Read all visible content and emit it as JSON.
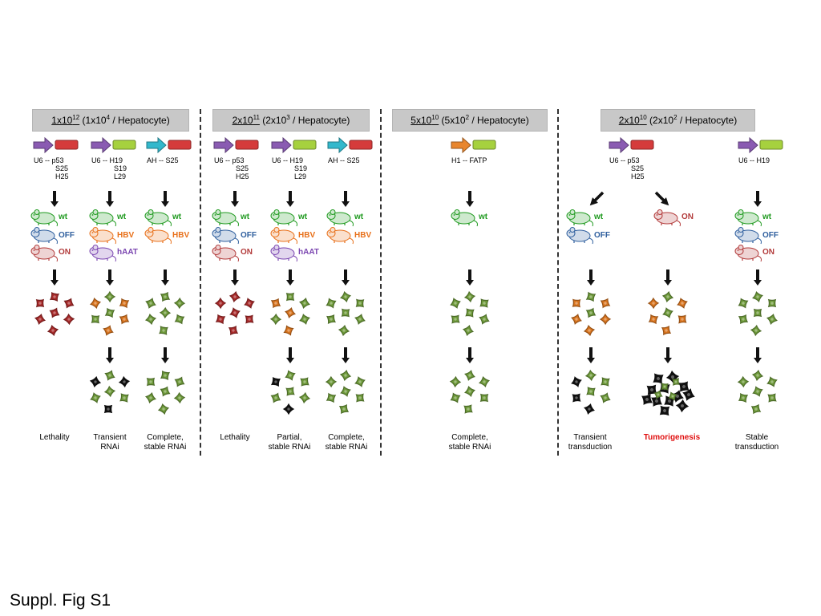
{
  "caption": "Suppl. Fig S1",
  "colors": {
    "promoter_u6": "#8a5bb2",
    "promoter_ah": "#33b8cc",
    "promoter_h1": "#e8862e",
    "shrna_p53": "#d53b3b",
    "shrna_h19": "#a6d13e",
    "mouse_wt": "#1f9a1f",
    "mouse_off": "#2f5f9e",
    "mouse_on": "#b23a3a",
    "mouse_hbv": "#e8701a",
    "mouse_haat": "#7a45b0",
    "cell_red": "#a82a2a",
    "cell_orange": "#d8741e",
    "cell_green": "#6e9a3a",
    "cell_black": "#111111",
    "outcome_red": "#e01010"
  },
  "groups": [
    {
      "dose": "1x10",
      "dose_exp": "12",
      "per_a": " (1x10",
      "per_exp": "4",
      "per_b": " / Hepatocyte)"
    },
    {
      "dose": "2x10",
      "dose_exp": "11",
      "per_a": " (2x10",
      "per_exp": "3",
      "per_b": " / Hepatocyte)"
    },
    {
      "dose": "5x10",
      "dose_exp": "10",
      "per_a": " (5x10",
      "per_exp": "2",
      "per_b": " / Hepatocyte)"
    },
    {
      "dose": "2x10",
      "dose_exp": "10",
      "per_a": " (2x10",
      "per_exp": "2",
      "per_b": " / Hepatocyte)"
    }
  ],
  "constructs": [
    {
      "promoter": "U6",
      "targets": [
        "p53",
        "S25",
        "H25"
      ]
    },
    {
      "promoter": "U6",
      "targets": [
        "H19",
        "S19",
        "L29"
      ]
    },
    {
      "promoter": "AH",
      "targets": [
        "S25"
      ]
    },
    {
      "promoter": "U6",
      "targets": [
        "p53",
        "S25",
        "H25"
      ]
    },
    {
      "promoter": "U6",
      "targets": [
        "H19",
        "S19",
        "L29"
      ]
    },
    {
      "promoter": "AH",
      "targets": [
        "S25"
      ]
    },
    {
      "promoter": "H1",
      "targets": [
        "FATP"
      ]
    },
    {
      "promoter": "U6",
      "targets": [
        "p53",
        "S25",
        "H25"
      ]
    },
    {
      "promoter": "U6",
      "targets": [
        "H19"
      ]
    }
  ],
  "mouse_labels": [
    "wt",
    "OFF",
    "ON",
    "HBV",
    "hAAT"
  ],
  "outcomes": [
    {
      "line1": "Lethality",
      "line2": ""
    },
    {
      "line1": "Transient",
      "line2": "RNAi"
    },
    {
      "line1": "Complete,",
      "line2": "stable RNAi"
    },
    {
      "line1": "Lethality",
      "line2": ""
    },
    {
      "line1": "Partial,",
      "line2": "stable RNAi"
    },
    {
      "line1": "Complete,",
      "line2": "stable RNAi"
    },
    {
      "line1": "Complete,",
      "line2": "stable RNAi"
    },
    {
      "line1": "Transient",
      "line2": "transduction"
    },
    {
      "line1": "Tumorigenesis",
      "line2": ""
    },
    {
      "line1": "Stable",
      "line2": "transduction"
    }
  ]
}
